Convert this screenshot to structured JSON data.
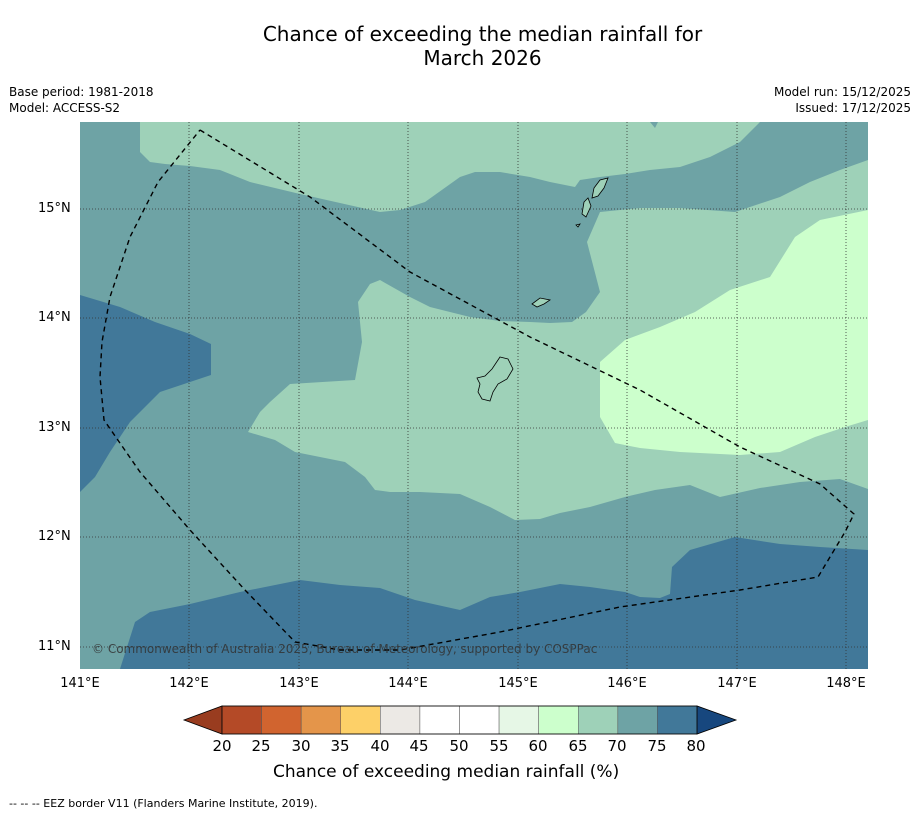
{
  "title_line1": "Chance of exceeding the median rainfall for",
  "title_line2": "March 2026",
  "meta_left": {
    "base_period": "Base period: 1981-2018",
    "model": "Model: ACCESS-S2"
  },
  "meta_right": {
    "model_run": "Model run: 15/12/2025",
    "issued": "Issued: 17/12/2025"
  },
  "map": {
    "lat_labels": [
      "15°N",
      "14°N",
      "13°N",
      "12°N",
      "11°N"
    ],
    "lon_labels": [
      "141°E",
      "142°E",
      "143°E",
      "144°E",
      "145°E",
      "146°E",
      "147°E",
      "148°E"
    ],
    "copyright": "© Commonwealth of Australia 2025, Bureau of Meteorology, supported by COSPPac"
  },
  "colorbar": {
    "title": "Chance of exceeding median rainfall (%)",
    "labels": [
      "20",
      "25",
      "30",
      "35",
      "40",
      "45",
      "50",
      "55",
      "60",
      "65",
      "70",
      "75",
      "80"
    ],
    "colors": [
      "#b44a27",
      "#d1642f",
      "#e4954a",
      "#fdd068",
      "#ece9e5",
      "#ffffff",
      "#ffffff",
      "#e6f7e6",
      "#ccffcc",
      "#9ed1b8",
      "#6ea3a5",
      "#417899"
    ],
    "under_color": "#993c1f",
    "over_color": "#17477e"
  },
  "legend_note": "--  --  -- EEZ border V11 (Flanders Marine Institute, 2019)."
}
